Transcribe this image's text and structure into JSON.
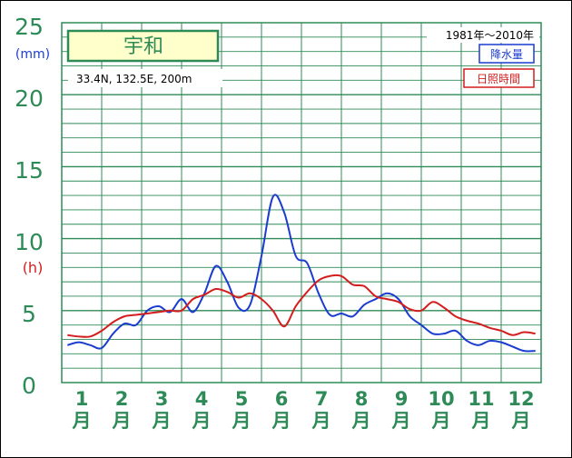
{
  "chart_data": {
    "type": "line",
    "station": "宇和",
    "location": "33.4N,  132.5E,  200m",
    "period": "1981年～2010年",
    "y_unit_precip": "(mm)",
    "y_unit_sun": "(h)",
    "ylim": [
      0,
      25
    ],
    "y_ticks": [
      "0",
      "5",
      "10",
      "15",
      "20",
      "25"
    ],
    "months": [
      "1",
      "2",
      "3",
      "4",
      "5",
      "6",
      "7",
      "8",
      "9",
      "10",
      "11",
      "12"
    ],
    "month_suffix": "月",
    "series": [
      {
        "name": "降水量",
        "color": "#1a3ccf",
        "values": [
          2.6,
          2.8,
          2.6,
          2.4,
          3.4,
          4.1,
          4.0,
          5.0,
          5.3,
          4.9,
          5.8,
          4.9,
          6.2,
          8.1,
          7.0,
          5.2,
          5.4,
          8.8,
          12.9,
          11.8,
          8.8,
          8.3,
          6.2,
          4.7,
          4.8,
          4.6,
          5.4,
          5.8,
          6.2,
          5.8,
          4.6,
          4.0,
          3.4,
          3.4,
          3.6,
          2.9,
          2.6,
          2.9,
          2.8,
          2.5,
          2.2,
          2.2
        ]
      },
      {
        "name": "日照時間",
        "color": "#d21e1e",
        "values": [
          3.3,
          3.2,
          3.2,
          3.6,
          4.2,
          4.6,
          4.7,
          4.8,
          4.9,
          5.0,
          5.0,
          5.8,
          6.1,
          6.5,
          6.3,
          5.9,
          6.2,
          5.8,
          5.0,
          3.9,
          5.3,
          6.3,
          7.1,
          7.4,
          7.4,
          6.8,
          6.7,
          6.0,
          5.8,
          5.6,
          5.1,
          5.0,
          5.6,
          5.2,
          4.6,
          4.3,
          4.1,
          3.8,
          3.6,
          3.3,
          3.5,
          3.4
        ]
      }
    ],
    "grid": true
  }
}
